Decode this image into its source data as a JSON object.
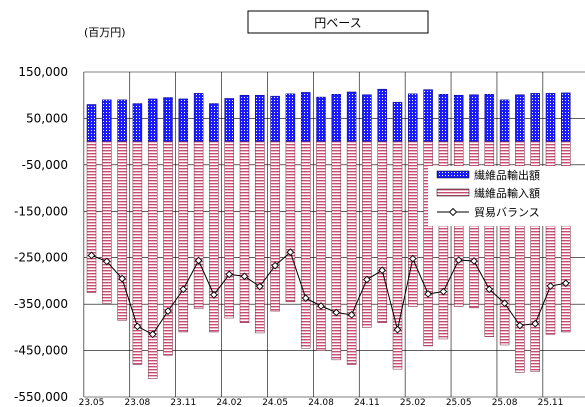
{
  "chart_data": {
    "type": "bar",
    "title": "円ベース",
    "unit_label": "(百万円)",
    "ylim": [
      -550000,
      150000
    ],
    "y_ticks": [
      150000,
      50000,
      -50000,
      -150000,
      -250000,
      -350000,
      -450000,
      -550000
    ],
    "y_tick_labels": [
      "150,000",
      "50,000",
      "-50,000",
      "-150,000",
      "-250,000",
      "-350,000",
      "-450,000",
      "-550,000"
    ],
    "x_tick_labels": [
      "23.05",
      "23.08",
      "23.11",
      "24.02",
      "24.05",
      "24.08",
      "24.11",
      "25.02",
      "25.05",
      "25.08",
      "25.11"
    ],
    "x_tick_indices": [
      0,
      3,
      6,
      9,
      12,
      15,
      18,
      21,
      24,
      27,
      30
    ],
    "grid": true,
    "legend_position": "right",
    "categories": [
      "23.05",
      "23.06",
      "23.07",
      "23.08",
      "23.09",
      "23.10",
      "23.11",
      "23.12",
      "24.01",
      "24.02",
      "24.03",
      "24.04",
      "24.05",
      "24.06",
      "24.07",
      "24.08",
      "24.09",
      "24.10",
      "24.11",
      "24.12",
      "25.01",
      "25.02",
      "25.03",
      "25.04",
      "25.05",
      "25.06",
      "25.07",
      "25.08",
      "25.09",
      "25.10",
      "25.11",
      "25.12"
    ],
    "series": [
      {
        "name": "繊維品輸出額",
        "kind": "bar",
        "color": "#1a1aff",
        "values": [
          80000,
          90000,
          90000,
          82000,
          92000,
          95000,
          92000,
          104000,
          82000,
          93000,
          100000,
          100000,
          98000,
          103000,
          106000,
          96000,
          102000,
          107000,
          101000,
          113000,
          85000,
          103000,
          112000,
          102000,
          100000,
          101000,
          102000,
          90000,
          101000,
          104000,
          104000,
          105000
        ]
      },
      {
        "name": "繊維品輸入額",
        "kind": "bar",
        "color": "#d06080",
        "values": [
          -325000,
          -348000,
          -385000,
          -480000,
          -510000,
          -460000,
          -410000,
          -360000,
          -410000,
          -380000,
          -390000,
          -412000,
          -365000,
          -345000,
          -445000,
          -450000,
          -470000,
          -480000,
          -400000,
          -390000,
          -490000,
          -355000,
          -440000,
          -425000,
          -355000,
          -358000,
          -420000,
          -438000,
          -497000,
          -495000,
          -415000,
          -410000
        ]
      },
      {
        "name": "貿易バランス",
        "kind": "line",
        "color": "#000000",
        "values": [
          -245000,
          -258000,
          -295000,
          -398000,
          -415000,
          -365000,
          -318000,
          -256000,
          -330000,
          -286000,
          -290000,
          -312000,
          -267000,
          -238000,
          -337000,
          -354000,
          -368000,
          -373000,
          -297000,
          -277000,
          -405000,
          -252000,
          -328000,
          -323000,
          -255000,
          -257000,
          -318000,
          -348000,
          -396000,
          -392000,
          -311000,
          -305000
        ]
      }
    ]
  }
}
